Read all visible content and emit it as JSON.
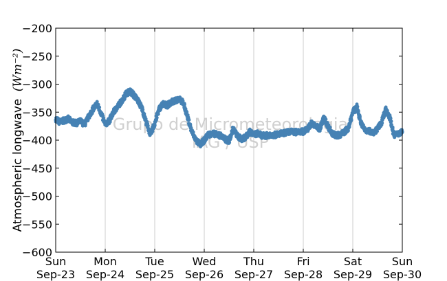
{
  "chart_data": {
    "type": "scatter",
    "ylabel": "Atmospheric longwave",
    "ylabel_unit": "(Wm⁻²)",
    "ylim": [
      -600,
      -200
    ],
    "yticks": [
      -200,
      -250,
      -300,
      -350,
      -400,
      -450,
      -500,
      -550,
      -600
    ],
    "xlim": [
      "2012-09-23",
      "2012-09-30"
    ],
    "xticks": [
      {
        "day": "Sun",
        "date": "Sep-23"
      },
      {
        "day": "Mon",
        "date": "Sep-24"
      },
      {
        "day": "Tue",
        "date": "Sep-25"
      },
      {
        "day": "Wed",
        "date": "Sep-26"
      },
      {
        "day": "Thu",
        "date": "Sep-27"
      },
      {
        "day": "Fri",
        "date": "Sep-28"
      },
      {
        "day": "Sat",
        "date": "Sep-29"
      },
      {
        "day": "Sun",
        "date": "Sep-30"
      }
    ],
    "grid": "vertical",
    "marker_color": "#4682b4",
    "watermark": [
      "Grupo de Micrometeorologia",
      "IAG / USP"
    ],
    "series": [
      {
        "x": [
          "2012-09-23 00:00",
          "2012-09-23 02:00",
          "2012-09-23 04:00",
          "2012-09-23 06:00",
          "2012-09-23 08:00",
          "2012-09-23 10:00",
          "2012-09-23 12:00",
          "2012-09-23 14:00",
          "2012-09-23 16:00",
          "2012-09-23 18:00",
          "2012-09-23 20:00",
          "2012-09-23 22:00",
          "2012-09-24 00:00",
          "2012-09-24 02:00",
          "2012-09-24 04:00",
          "2012-09-24 06:00",
          "2012-09-24 08:00",
          "2012-09-24 10:00",
          "2012-09-24 12:00",
          "2012-09-24 14:00",
          "2012-09-24 16:00",
          "2012-09-24 18:00",
          "2012-09-24 20:00",
          "2012-09-24 22:00",
          "2012-09-25 00:00",
          "2012-09-25 02:00",
          "2012-09-25 04:00",
          "2012-09-25 06:00",
          "2012-09-25 08:00",
          "2012-09-25 10:00",
          "2012-09-25 12:00",
          "2012-09-25 14:00",
          "2012-09-25 16:00",
          "2012-09-25 18:00",
          "2012-09-25 20:00",
          "2012-09-25 22:00",
          "2012-09-26 00:00",
          "2012-09-26 02:00",
          "2012-09-26 04:00",
          "2012-09-26 06:00",
          "2012-09-26 08:00",
          "2012-09-26 10:00",
          "2012-09-26 12:00",
          "2012-09-26 14:00",
          "2012-09-26 16:00",
          "2012-09-26 18:00",
          "2012-09-26 20:00",
          "2012-09-26 22:00",
          "2012-09-27 00:00",
          "2012-09-27 02:00",
          "2012-09-27 04:00",
          "2012-09-27 06:00",
          "2012-09-27 08:00",
          "2012-09-27 10:00",
          "2012-09-27 12:00",
          "2012-09-27 14:00",
          "2012-09-27 16:00",
          "2012-09-27 18:00",
          "2012-09-27 20:00",
          "2012-09-27 22:00",
          "2012-09-28 00:00",
          "2012-09-28 02:00",
          "2012-09-28 04:00",
          "2012-09-28 06:00",
          "2012-09-28 08:00",
          "2012-09-28 10:00",
          "2012-09-28 12:00",
          "2012-09-28 14:00",
          "2012-09-28 16:00",
          "2012-09-28 18:00",
          "2012-09-28 20:00",
          "2012-09-28 22:00",
          "2012-09-29 00:00",
          "2012-09-29 02:00",
          "2012-09-29 04:00",
          "2012-09-29 06:00",
          "2012-09-29 08:00",
          "2012-09-29 10:00",
          "2012-09-29 12:00",
          "2012-09-29 14:00",
          "2012-09-29 16:00",
          "2012-09-29 18:00",
          "2012-09-29 20:00",
          "2012-09-29 22:00",
          "2012-09-30 00:00"
        ],
        "values": [
          -362,
          -368,
          -365,
          -362,
          -368,
          -370,
          -366,
          -372,
          -358,
          -345,
          -335,
          -352,
          -372,
          -365,
          -350,
          -340,
          -330,
          -318,
          -312,
          -320,
          -330,
          -345,
          -370,
          -390,
          -370,
          -345,
          -335,
          -338,
          -332,
          -330,
          -325,
          -335,
          -360,
          -385,
          -400,
          -408,
          -400,
          -390,
          -388,
          -390,
          -392,
          -398,
          -402,
          -380,
          -392,
          -398,
          -395,
          -385,
          -390,
          -388,
          -392,
          -392,
          -390,
          -391,
          -389,
          -388,
          -386,
          -385,
          -386,
          -384,
          -385,
          -380,
          -370,
          -375,
          -380,
          -360,
          -375,
          -388,
          -392,
          -390,
          -385,
          -378,
          -350,
          -340,
          -370,
          -382,
          -384,
          -386,
          -380,
          -368,
          -345,
          -360,
          -392,
          -388,
          -385
        ]
      }
    ]
  }
}
